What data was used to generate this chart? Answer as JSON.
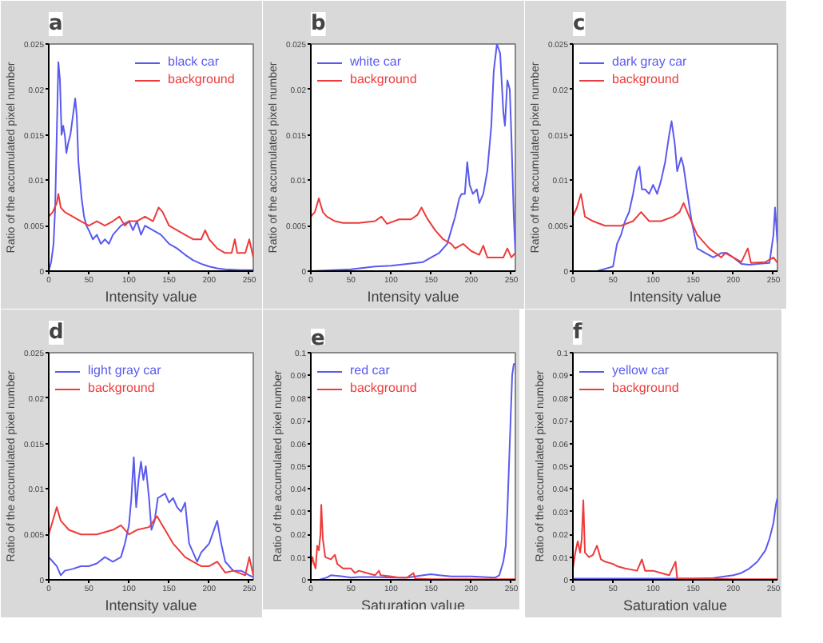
{
  "chart_data": [
    {
      "type": "line",
      "title": "a",
      "xlabel": "Intensity value",
      "ylabel": "Ratio of the accumulated pixel number",
      "xlim": [
        0,
        255
      ],
      "xticks": [
        0,
        50,
        100,
        150,
        200,
        250
      ],
      "ylim": [
        0,
        0.025
      ],
      "yticks": [
        0,
        0.005,
        0.01,
        0.015,
        0.02,
        0.025
      ],
      "grid": false,
      "legend": "top right",
      "line_style": "solid",
      "series": [
        {
          "name": "black car",
          "color": "#5a5af0",
          "x": [
            0,
            3,
            6,
            8,
            10,
            12,
            14,
            16,
            18,
            20,
            22,
            24,
            27,
            30,
            33,
            35,
            37,
            39,
            41,
            44,
            47,
            50,
            55,
            60,
            65,
            70,
            75,
            80,
            90,
            100,
            105,
            110,
            115,
            120,
            130,
            140,
            150,
            160,
            170,
            180,
            190,
            200,
            210,
            220,
            240,
            255
          ],
          "values": [
            0,
            0.001,
            0.003,
            0.007,
            0.015,
            0.023,
            0.021,
            0.015,
            0.016,
            0.015,
            0.013,
            0.014,
            0.015,
            0.017,
            0.019,
            0.017,
            0.012,
            0.01,
            0.008,
            0.006,
            0.005,
            0.0045,
            0.0035,
            0.004,
            0.003,
            0.0035,
            0.003,
            0.004,
            0.005,
            0.0055,
            0.0045,
            0.0055,
            0.004,
            0.005,
            0.0045,
            0.004,
            0.003,
            0.0025,
            0.0018,
            0.0012,
            0.0008,
            0.0005,
            0.0003,
            0.0002,
            0.0001,
            0.0001
          ]
        },
        {
          "name": "background",
          "color": "#ee3b3b",
          "x": [
            0,
            5,
            10,
            12,
            15,
            20,
            30,
            40,
            50,
            60,
            70,
            80,
            88,
            95,
            100,
            110,
            120,
            130,
            137,
            142,
            150,
            160,
            170,
            180,
            190,
            195,
            200,
            210,
            220,
            228,
            232,
            235,
            245,
            250,
            255
          ],
          "values": [
            0.006,
            0.0065,
            0.0075,
            0.0085,
            0.007,
            0.0065,
            0.006,
            0.0055,
            0.005,
            0.0055,
            0.005,
            0.0055,
            0.006,
            0.005,
            0.0055,
            0.0055,
            0.006,
            0.0055,
            0.007,
            0.0065,
            0.005,
            0.0045,
            0.004,
            0.0035,
            0.0035,
            0.0045,
            0.0035,
            0.0025,
            0.002,
            0.002,
            0.0035,
            0.002,
            0.002,
            0.0035,
            0.0015
          ]
        }
      ]
    },
    {
      "type": "line",
      "title": "b",
      "xlabel": "Intensity value",
      "ylabel": "Ratio of the accumulated pixel number",
      "xlim": [
        0,
        255
      ],
      "xticks": [
        0,
        50,
        100,
        150,
        200,
        250
      ],
      "ylim": [
        0,
        0.025
      ],
      "yticks": [
        0,
        0.005,
        0.01,
        0.015,
        0.02,
        0.025
      ],
      "grid": false,
      "legend": "top left",
      "line_style": "solid",
      "series": [
        {
          "name": "white car",
          "color": "#5a5af0",
          "x": [
            0,
            50,
            80,
            100,
            120,
            140,
            150,
            160,
            170,
            175,
            180,
            185,
            188,
            192,
            195,
            198,
            202,
            207,
            210,
            215,
            220,
            225,
            228,
            232,
            236,
            240,
            242,
            245,
            248,
            250,
            253,
            255
          ],
          "values": [
            0,
            0.0002,
            0.0005,
            0.0006,
            0.0008,
            0.001,
            0.0015,
            0.002,
            0.003,
            0.0045,
            0.006,
            0.008,
            0.0085,
            0.0085,
            0.012,
            0.0095,
            0.0085,
            0.009,
            0.0075,
            0.0085,
            0.011,
            0.016,
            0.022,
            0.025,
            0.024,
            0.0175,
            0.016,
            0.021,
            0.02,
            0.015,
            0.006,
            0.002
          ]
        },
        {
          "name": "background",
          "color": "#ee3b3b",
          "x": [
            0,
            5,
            10,
            15,
            20,
            30,
            40,
            60,
            80,
            88,
            95,
            110,
            125,
            133,
            138,
            145,
            155,
            165,
            175,
            180,
            190,
            200,
            210,
            215,
            220,
            240,
            245,
            250,
            255
          ],
          "values": [
            0.006,
            0.0065,
            0.008,
            0.0065,
            0.006,
            0.0055,
            0.0053,
            0.0053,
            0.0055,
            0.006,
            0.0052,
            0.0057,
            0.0057,
            0.0062,
            0.007,
            0.0058,
            0.0045,
            0.0035,
            0.003,
            0.0025,
            0.003,
            0.0022,
            0.0018,
            0.0028,
            0.0015,
            0.0015,
            0.0025,
            0.0015,
            0.002
          ]
        }
      ]
    },
    {
      "type": "line",
      "title": "c",
      "xlabel": "Intensity value",
      "ylabel": "Ratio of the accumulated pixel number",
      "xlim": [
        0,
        255
      ],
      "xticks": [
        0,
        50,
        100,
        150,
        200,
        250
      ],
      "ylim": [
        0,
        0.025
      ],
      "yticks": [
        0,
        0.005,
        0.01,
        0.015,
        0.02,
        0.025
      ],
      "grid": false,
      "legend": "top left",
      "line_style": "solid",
      "series": [
        {
          "name": "dark gray car",
          "color": "#5a5af0",
          "x": [
            0,
            30,
            50,
            55,
            60,
            65,
            70,
            75,
            80,
            83,
            86,
            90,
            95,
            100,
            105,
            110,
            115,
            120,
            123,
            127,
            130,
            135,
            138,
            142,
            148,
            155,
            165,
            175,
            185,
            192,
            200,
            210,
            220,
            230,
            245,
            250,
            252,
            255
          ],
          "values": [
            0,
            0,
            0.0005,
            0.003,
            0.004,
            0.0055,
            0.0065,
            0.0085,
            0.011,
            0.0115,
            0.009,
            0.009,
            0.0085,
            0.0095,
            0.0085,
            0.01,
            0.012,
            0.015,
            0.0165,
            0.014,
            0.011,
            0.0125,
            0.0115,
            0.009,
            0.0055,
            0.0025,
            0.002,
            0.0015,
            0.002,
            0.002,
            0.0015,
            0.0008,
            0.0007,
            0.0008,
            0.0009,
            0.004,
            0.007,
            0.003
          ]
        },
        {
          "name": "background",
          "color": "#ee3b3b",
          "x": [
            0,
            5,
            10,
            15,
            25,
            40,
            60,
            75,
            85,
            95,
            110,
            125,
            133,
            138,
            145,
            155,
            170,
            185,
            190,
            200,
            210,
            218,
            222,
            240,
            250,
            255
          ],
          "values": [
            0.006,
            0.007,
            0.0085,
            0.006,
            0.0055,
            0.005,
            0.005,
            0.0055,
            0.0065,
            0.0055,
            0.0055,
            0.006,
            0.0065,
            0.0075,
            0.006,
            0.004,
            0.0025,
            0.0015,
            0.002,
            0.0015,
            0.001,
            0.0025,
            0.0009,
            0.001,
            0.0015,
            0.0009
          ]
        }
      ]
    },
    {
      "type": "line",
      "title": "d",
      "xlabel": "Intensity value",
      "ylabel": "Ratio of the accumulated pixel number",
      "xlim": [
        0,
        255
      ],
      "xticks": [
        0,
        50,
        100,
        150,
        200,
        250
      ],
      "ylim": [
        0,
        0.025
      ],
      "yticks": [
        0,
        0.005,
        0.01,
        0.015,
        0.02,
        0.025
      ],
      "grid": false,
      "legend": "top left",
      "line_style": "solid",
      "series": [
        {
          "name": "light gray car",
          "color": "#5a5af0",
          "x": [
            0,
            5,
            10,
            15,
            20,
            30,
            40,
            50,
            60,
            70,
            80,
            90,
            95,
            100,
            103,
            106,
            109,
            112,
            115,
            118,
            121,
            125,
            128,
            132,
            136,
            145,
            150,
            155,
            160,
            165,
            170,
            175,
            180,
            185,
            190,
            200,
            210,
            215,
            220,
            230,
            240,
            250,
            255
          ],
          "values": [
            0.0025,
            0.002,
            0.0015,
            0.0005,
            0.001,
            0.0012,
            0.0015,
            0.0015,
            0.0018,
            0.0025,
            0.002,
            0.0025,
            0.004,
            0.006,
            0.009,
            0.0135,
            0.008,
            0.011,
            0.013,
            0.011,
            0.0125,
            0.009,
            0.0055,
            0.0065,
            0.009,
            0.0095,
            0.0085,
            0.009,
            0.008,
            0.0075,
            0.0085,
            0.004,
            0.003,
            0.002,
            0.003,
            0.004,
            0.0065,
            0.004,
            0.002,
            0.001,
            0.001,
            0.0005,
            0.0003
          ]
        },
        {
          "name": "background",
          "color": "#ee3b3b",
          "x": [
            0,
            5,
            10,
            15,
            25,
            40,
            60,
            80,
            90,
            100,
            110,
            125,
            135,
            145,
            155,
            170,
            180,
            190,
            200,
            210,
            220,
            230,
            245,
            250,
            255
          ],
          "values": [
            0.005,
            0.0065,
            0.008,
            0.0065,
            0.0055,
            0.005,
            0.005,
            0.0055,
            0.006,
            0.005,
            0.0055,
            0.0058,
            0.007,
            0.0055,
            0.004,
            0.0025,
            0.002,
            0.0015,
            0.0015,
            0.002,
            0.0008,
            0.001,
            0.0005,
            0.0025,
            0.0005
          ]
        }
      ]
    },
    {
      "type": "line",
      "title": "e",
      "xlabel": "Saturation value",
      "ylabel": "Ratio of the accumulated pixel number",
      "xlim": [
        0,
        255
      ],
      "xticks": [
        0,
        50,
        100,
        150,
        200,
        250
      ],
      "ylim": [
        0,
        0.1
      ],
      "yticks": [
        0,
        0.01,
        0.02,
        0.03,
        0.04,
        0.05,
        0.06,
        0.07,
        0.08,
        0.09,
        0.1
      ],
      "grid": false,
      "legend": "top left",
      "line_style": "solid",
      "series": [
        {
          "name": "red car",
          "color": "#5a5af0",
          "x": [
            0,
            10,
            20,
            25,
            40,
            50,
            60,
            80,
            100,
            120,
            140,
            150,
            160,
            175,
            190,
            200,
            230,
            235,
            240,
            243,
            245,
            247,
            249,
            251,
            253,
            255
          ],
          "values": [
            0,
            0,
            0.001,
            0.002,
            0.0015,
            0.001,
            0.0012,
            0.0012,
            0.001,
            0.001,
            0.002,
            0.0025,
            0.002,
            0.0015,
            0.0015,
            0.0015,
            0.001,
            0.002,
            0.008,
            0.015,
            0.03,
            0.05,
            0.07,
            0.09,
            0.095,
            0.095
          ]
        },
        {
          "name": "background",
          "color": "#ee3b3b",
          "x": [
            0,
            2,
            4,
            6,
            8,
            10,
            12,
            13,
            15,
            18,
            25,
            30,
            33,
            40,
            50,
            55,
            60,
            70,
            80,
            85,
            87,
            100,
            110,
            120,
            128,
            130,
            150,
            200,
            255
          ],
          "values": [
            0.006,
            0.01,
            0.007,
            0.005,
            0.015,
            0.013,
            0.02,
            0.033,
            0.018,
            0.01,
            0.009,
            0.011,
            0.007,
            0.005,
            0.005,
            0.003,
            0.004,
            0.003,
            0.002,
            0.004,
            0.002,
            0.0015,
            0.001,
            0.001,
            0.003,
            0.0005,
            0.0003,
            0.0003,
            0.0003
          ]
        }
      ]
    },
    {
      "type": "line",
      "title": "f",
      "xlabel": "Saturation value",
      "ylabel": "Ratio of the accumulated pixel number",
      "xlim": [
        0,
        255
      ],
      "xticks": [
        0,
        50,
        100,
        150,
        200,
        250
      ],
      "ylim": [
        0,
        0.1
      ],
      "yticks": [
        0,
        0.01,
        0.02,
        0.03,
        0.04,
        0.05,
        0.06,
        0.07,
        0.08,
        0.09,
        0.1
      ],
      "grid": false,
      "legend": "top left",
      "line_style": "solid",
      "series": [
        {
          "name": "yellow car",
          "color": "#5a5af0",
          "x": [
            0,
            50,
            100,
            150,
            175,
            200,
            210,
            220,
            230,
            240,
            245,
            250,
            253,
            255
          ],
          "values": [
            0.0005,
            0.0005,
            0.0005,
            0.0005,
            0.0008,
            0.002,
            0.003,
            0.005,
            0.008,
            0.013,
            0.018,
            0.025,
            0.033,
            0.036
          ]
        },
        {
          "name": "background",
          "color": "#ee3b3b",
          "x": [
            0,
            3,
            6,
            9,
            11,
            13,
            15,
            20,
            25,
            30,
            35,
            40,
            50,
            55,
            65,
            80,
            86,
            90,
            100,
            110,
            120,
            128,
            130,
            150,
            170,
            200,
            255
          ],
          "values": [
            0.005,
            0.012,
            0.017,
            0.012,
            0.018,
            0.035,
            0.012,
            0.01,
            0.011,
            0.015,
            0.009,
            0.008,
            0.007,
            0.006,
            0.005,
            0.004,
            0.009,
            0.004,
            0.004,
            0.003,
            0.002,
            0.008,
            0.0005,
            0.0005,
            0.0005,
            0.0003,
            0.0003
          ]
        }
      ]
    }
  ]
}
